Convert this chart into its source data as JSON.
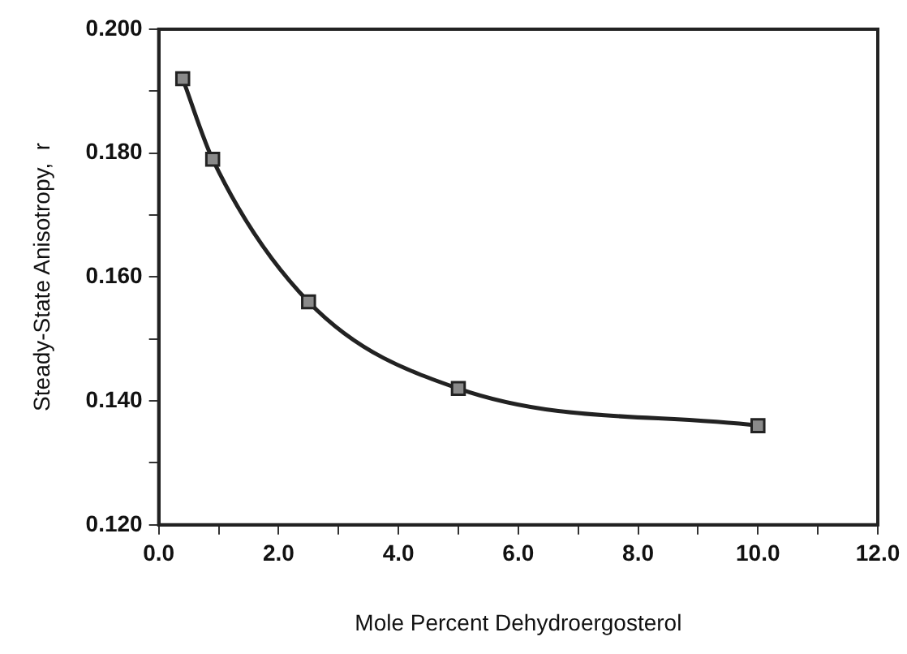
{
  "chart_data": {
    "type": "line",
    "xlabel": "Mole Percent Dehydroergosterol",
    "ylabel": "Steady-State Anisotropy,  r",
    "x": [
      0.4,
      0.9,
      2.5,
      5.0,
      10.0
    ],
    "series": [
      {
        "color": "#222222",
        "values": [
          0.192,
          0.179,
          0.156,
          0.142,
          0.136
        ]
      }
    ],
    "xlim": [
      0,
      12
    ],
    "xticks": [
      {
        "value": 0,
        "label": "0.0"
      },
      {
        "value": 1,
        "label": null
      },
      {
        "value": 2,
        "label": "2.0"
      },
      {
        "value": 3,
        "label": null
      },
      {
        "value": 4,
        "label": "4.0"
      },
      {
        "value": 5,
        "label": null
      },
      {
        "value": 6,
        "label": "6.0"
      },
      {
        "value": 7,
        "label": null
      },
      {
        "value": 8,
        "label": "8.0"
      },
      {
        "value": 9,
        "label": null
      },
      {
        "value": 10,
        "label": "10.0"
      },
      {
        "value": 11,
        "label": null
      },
      {
        "value": 12,
        "label": "12.0"
      }
    ],
    "ylim": [
      0.12,
      0.2
    ],
    "yticks": [
      {
        "value": 0.12,
        "label": "0.120"
      },
      {
        "value": 0.13,
        "label": null
      },
      {
        "value": 0.14,
        "label": "0.140"
      },
      {
        "value": 0.15,
        "label": null
      },
      {
        "value": 0.16,
        "label": "0.160"
      },
      {
        "value": 0.17,
        "label": null
      },
      {
        "value": 0.18,
        "label": "0.180"
      },
      {
        "value": 0.19,
        "label": null
      },
      {
        "value": 0.2,
        "label": "0.200"
      }
    ],
    "grid": false,
    "legend": false,
    "marker": "square",
    "line_style": "solid"
  }
}
